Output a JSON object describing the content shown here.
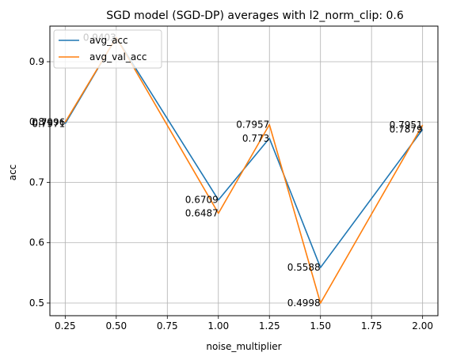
{
  "chart_data": {
    "type": "line",
    "title": "SGD model (SGD-DP) averages with l2_norm_clip: 0.6",
    "xlabel": "noise_multiplier",
    "ylabel": "acc",
    "xlim": [
      0.175,
      2.075
    ],
    "ylim": [
      0.479,
      0.959
    ],
    "xticks": [
      0.25,
      0.5,
      0.75,
      1.0,
      1.25,
      1.5,
      1.75,
      2.0
    ],
    "xtick_labels": [
      "0.25",
      "0.50",
      "0.75",
      "1.00",
      "1.25",
      "1.50",
      "1.75",
      "2.00"
    ],
    "yticks": [
      0.5,
      0.6,
      0.7,
      0.8,
      0.9
    ],
    "ytick_labels": [
      "0.5",
      "0.6",
      "0.7",
      "0.8",
      "0.9"
    ],
    "grid": true,
    "legend_position": "top-left",
    "x": [
      0.25,
      0.5,
      1.0,
      1.25,
      1.5,
      2.0
    ],
    "series": [
      {
        "name": "avg_acc",
        "color": "#1f77b4",
        "values": [
          0.7971,
          0.9403,
          0.6709,
          0.773,
          0.5588,
          0.7879
        ],
        "labels": [
          "0.7971",
          "0.9403",
          "0.6709",
          "0.773",
          "0.5588",
          "0.7879"
        ]
      },
      {
        "name": "avg_val_acc",
        "color": "#ff7f0e",
        "values": [
          0.7996,
          0.9403,
          0.6487,
          0.7957,
          0.4998,
          0.7951
        ],
        "labels": [
          "0.7996",
          "0.9403",
          "0.6487",
          "0.7957",
          "0.4998",
          "0.7951"
        ]
      }
    ]
  }
}
